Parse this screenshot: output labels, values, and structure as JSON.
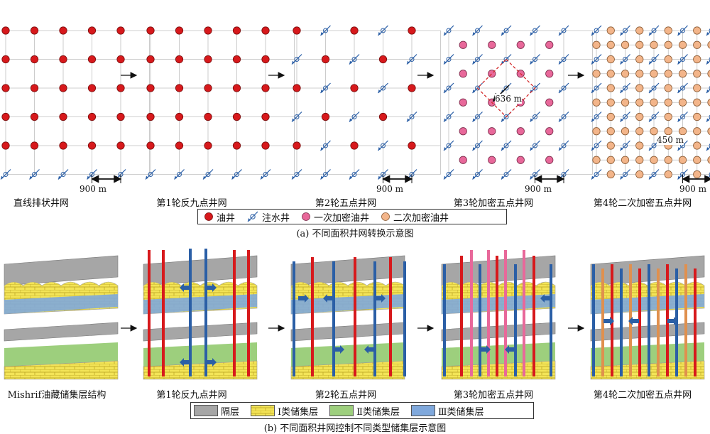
{
  "panel_a": {
    "stage_labels": [
      "直线排状井网",
      "第1轮反九点井网",
      "第2轮五点井网",
      "第3轮加密五点井网",
      "第4轮二次加密五点井网"
    ],
    "scale_labels": [
      "900 m",
      "900 m",
      "900 m",
      "900 m"
    ],
    "spacing_labels": {
      "stage4": "636 m",
      "stage5": "450 m"
    },
    "legend": {
      "oil_well": "油井",
      "injector": "注水井",
      "infill1": "一次加密油井",
      "infill2": "二次加密油井"
    },
    "caption": "(a) 不同面积井网转换示意图"
  },
  "panel_b": {
    "stage_labels": [
      "Mishrif油藏储集层结构",
      "第1轮反九点井网",
      "第2轮五点井网",
      "第3轮加密五点井网",
      "第4轮二次加密五点井网"
    ],
    "legend": {
      "barrier": "隔层",
      "class1": "Ⅰ类储集层",
      "class2": "Ⅱ类储集层",
      "class3": "Ⅲ类储集层"
    },
    "caption": "(b) 不同面积井网控制不同类型储集层示意图"
  },
  "colors": {
    "oil_well": "#d7191c",
    "injector": "#2b5fa6",
    "infill1": "#e8689a",
    "infill2": "#f3b58a",
    "barrier": "#a6a6a6",
    "class1": "#f3e457",
    "class2": "#9dcf7d",
    "class3": "#7fa8dc",
    "spacing_box": "#d42a2a"
  },
  "icons": {
    "arrow": "right-arrow-icon"
  }
}
